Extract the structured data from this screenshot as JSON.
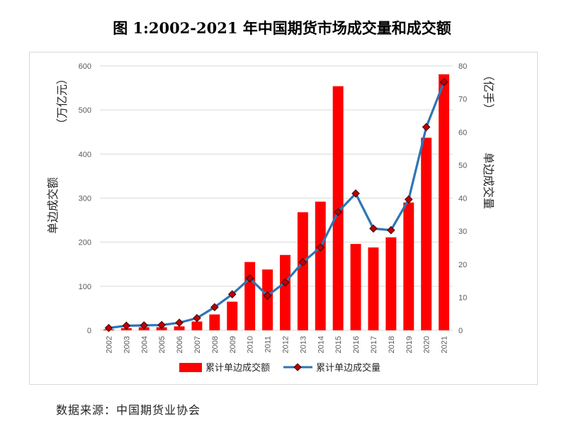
{
  "page": {
    "title": "图 1:2002-2021 年中国期货市场成交量和成交额",
    "source": "数据来源：中国期货业协会"
  },
  "chart_data": {
    "type": "bar+line",
    "title": "图 1:2002-2021 年中国期货市场成交量和成交额",
    "categories": [
      "2002",
      "2003",
      "2004",
      "2005",
      "2006",
      "2007",
      "2008",
      "2009",
      "2010",
      "2011",
      "2012",
      "2013",
      "2014",
      "2015",
      "2016",
      "2017",
      "2018",
      "2019",
      "2020",
      "2021"
    ],
    "series": [
      {
        "name": "累计单边成交额",
        "kind": "bar",
        "axis": "left",
        "color": "#ff0000",
        "values": [
          2,
          5,
          7,
          7,
          9,
          20,
          36,
          65,
          155,
          138,
          171,
          268,
          292,
          554,
          196,
          188,
          211,
          290,
          437,
          581
        ]
      },
      {
        "name": "累计单边成交量",
        "kind": "line",
        "axis": "right",
        "color": "#2e75b6",
        "marker_color": "#c00000",
        "values": [
          0.7,
          1.4,
          1.5,
          1.6,
          2.3,
          3.7,
          7.0,
          10.9,
          15.7,
          10.5,
          14.5,
          20.6,
          25.1,
          35.8,
          41.4,
          30.8,
          30.3,
          39.6,
          61.5,
          75.1
        ]
      }
    ],
    "y_left": {
      "label": "单边成交额",
      "unit": "（万亿元）",
      "ylim": [
        0,
        600
      ],
      "ticks": [
        0,
        100,
        200,
        300,
        400,
        500,
        600
      ]
    },
    "y_right": {
      "label": "单边成交量",
      "unit": "（亿手）",
      "ylim": [
        0,
        80
      ],
      "ticks": [
        0,
        10,
        20,
        30,
        40,
        50,
        60,
        70,
        80
      ]
    },
    "legend": [
      "累计单边成交额",
      "累计单边成交量"
    ],
    "grid": true,
    "legend_position": "bottom"
  }
}
